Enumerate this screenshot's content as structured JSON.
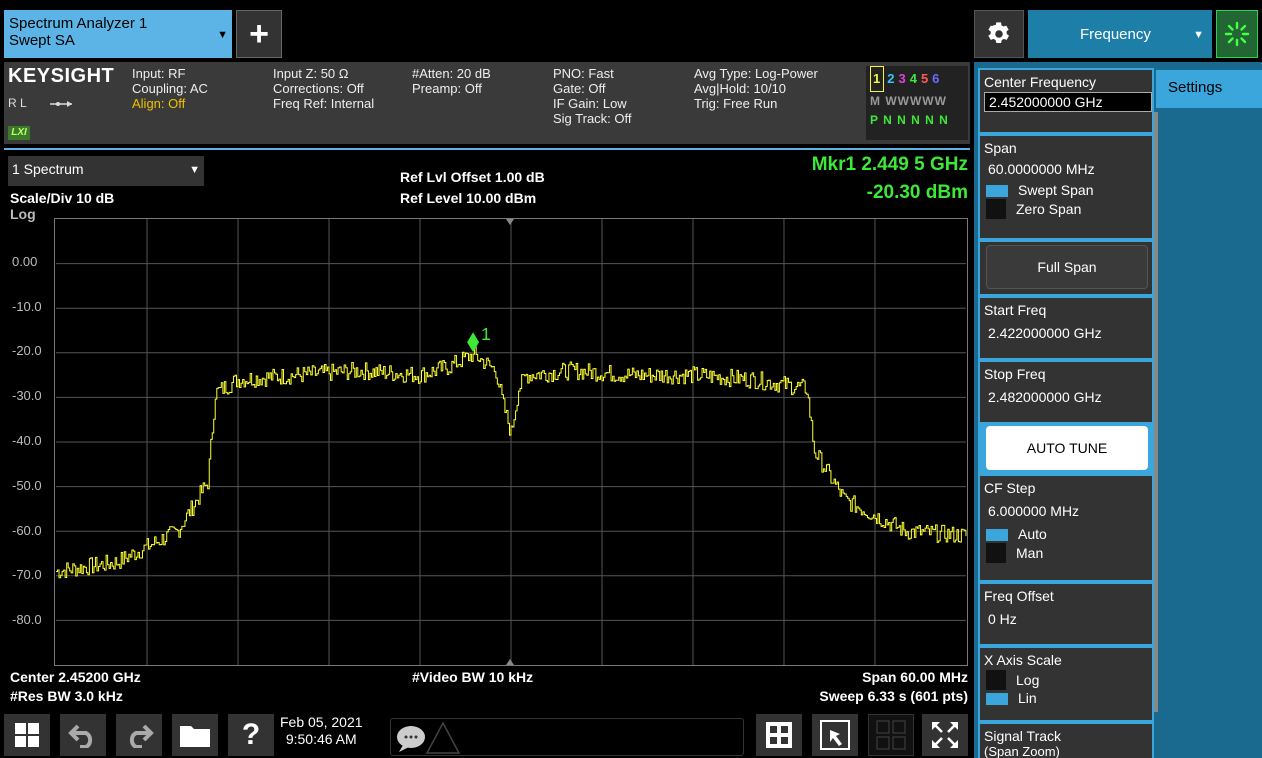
{
  "app_tab": {
    "line1": "Spectrum Analyzer 1",
    "line2": "Swept SA",
    "arrow": "▼"
  },
  "add_button": {
    "label": "+"
  },
  "menu_tab": {
    "label": "Frequency",
    "arrow": "▼"
  },
  "status": {
    "brand": "KEYSIGHT",
    "rl": "R L",
    "lxi": "LXI",
    "col1": [
      "Input: RF",
      "Coupling: AC",
      "Align: Off"
    ],
    "col2": [
      "Input Z: 50 Ω",
      "Corrections: Off",
      "Freq Ref: Internal"
    ],
    "col3": [
      "#Atten: 20 dB",
      "Preamp: Off"
    ],
    "col4": [
      "PNO: Fast",
      "Gate: Off",
      "IF Gain: Low",
      "Sig Track: Off"
    ],
    "col5": [
      "Avg Type: Log-Power",
      "Avg|Hold: 10/10",
      "Trig: Free Run"
    ],
    "trace_numbers": [
      "1",
      "2",
      "3",
      "4",
      "5",
      "6"
    ],
    "trace_colors": [
      "#f5f53a",
      "#36c3ff",
      "#e040e0",
      "#3ee838",
      "#ff5a5a",
      "#6b6bff"
    ],
    "trace_row2": "M WWWWW",
    "trace_row3": "P N N N N N"
  },
  "graph": {
    "selector": "1 Spectrum",
    "selector_arrow": "▼",
    "scale_div": "Scale/Div 10 dB",
    "scale_type": "Log",
    "ref_offset": "Ref Lvl Offset 1.00 dB",
    "ref_level": "Ref Level 10.00 dBm",
    "marker_freq": "Mkr1  2.449 5 GHz",
    "marker_amp": "-20.30 dBm",
    "marker_label": "1",
    "center": "Center 2.45200 GHz",
    "res_bw": "#Res BW 3.0 kHz",
    "video_bw": "#Video BW 10 kHz",
    "span": "Span 60.00 MHz",
    "sweep": "Sweep 6.33 s (601 pts)",
    "y_labels": [
      "0.00",
      "-10.0",
      "-20.0",
      "-30.0",
      "-40.0",
      "-50.0",
      "-60.0",
      "-70.0",
      "-80.0"
    ]
  },
  "chart_data": {
    "type": "line",
    "ylim": [
      -90,
      10
    ],
    "xlim_ghz": [
      2.422,
      2.482
    ],
    "y_ticks": [
      0,
      -10,
      -20,
      -30,
      -40,
      -50,
      -60,
      -70,
      -80
    ],
    "series": [
      {
        "x_ghz": [
          2.422,
          2.426,
          2.43,
          2.432,
          2.4325,
          2.434,
          2.438,
          2.442,
          2.446,
          2.448,
          2.4495,
          2.451,
          2.4515,
          2.452,
          2.4525,
          2.453,
          2.456,
          2.46,
          2.464,
          2.468,
          2.4715,
          2.472,
          2.474,
          2.478,
          2.482
        ],
        "y_dbm": [
          -69,
          -67,
          -60,
          -49,
          -29,
          -26,
          -25,
          -24,
          -25,
          -23,
          -20.3,
          -24,
          -32,
          -38,
          -28,
          -25,
          -24,
          -25,
          -25,
          -26,
          -28,
          -42,
          -53,
          -60,
          -61
        ],
        "color": "#ffff33"
      }
    ],
    "marker": {
      "x_ghz": 2.4495,
      "y_dbm": -20.3,
      "label": "1"
    }
  },
  "sidebar": {
    "settings_tab": "Settings",
    "center_freq_label": "Center Frequency",
    "center_freq_value": "2.452000000 GHz",
    "span_label": "Span",
    "span_value": "60.0000000 MHz",
    "swept_span": "Swept Span",
    "zero_span": "Zero Span",
    "full_span": "Full Span",
    "start_label": "Start Freq",
    "start_value": "2.422000000 GHz",
    "stop_label": "Stop Freq",
    "stop_value": "2.482000000 GHz",
    "auto_tune": "AUTO TUNE",
    "cf_step_label": "CF Step",
    "cf_step_value": "6.000000 MHz",
    "auto": "Auto",
    "man": "Man",
    "freq_offset_label": "Freq Offset",
    "freq_offset_value": "0 Hz",
    "xscale_label": "X Axis Scale",
    "log": "Log",
    "lin": "Lin",
    "signal_track_label": "Signal Track",
    "signal_track_sub": "(Span Zoom)"
  },
  "toolbar": {
    "date": "Feb 05, 2021",
    "time": "9:50:46 AM",
    "help": "?"
  }
}
